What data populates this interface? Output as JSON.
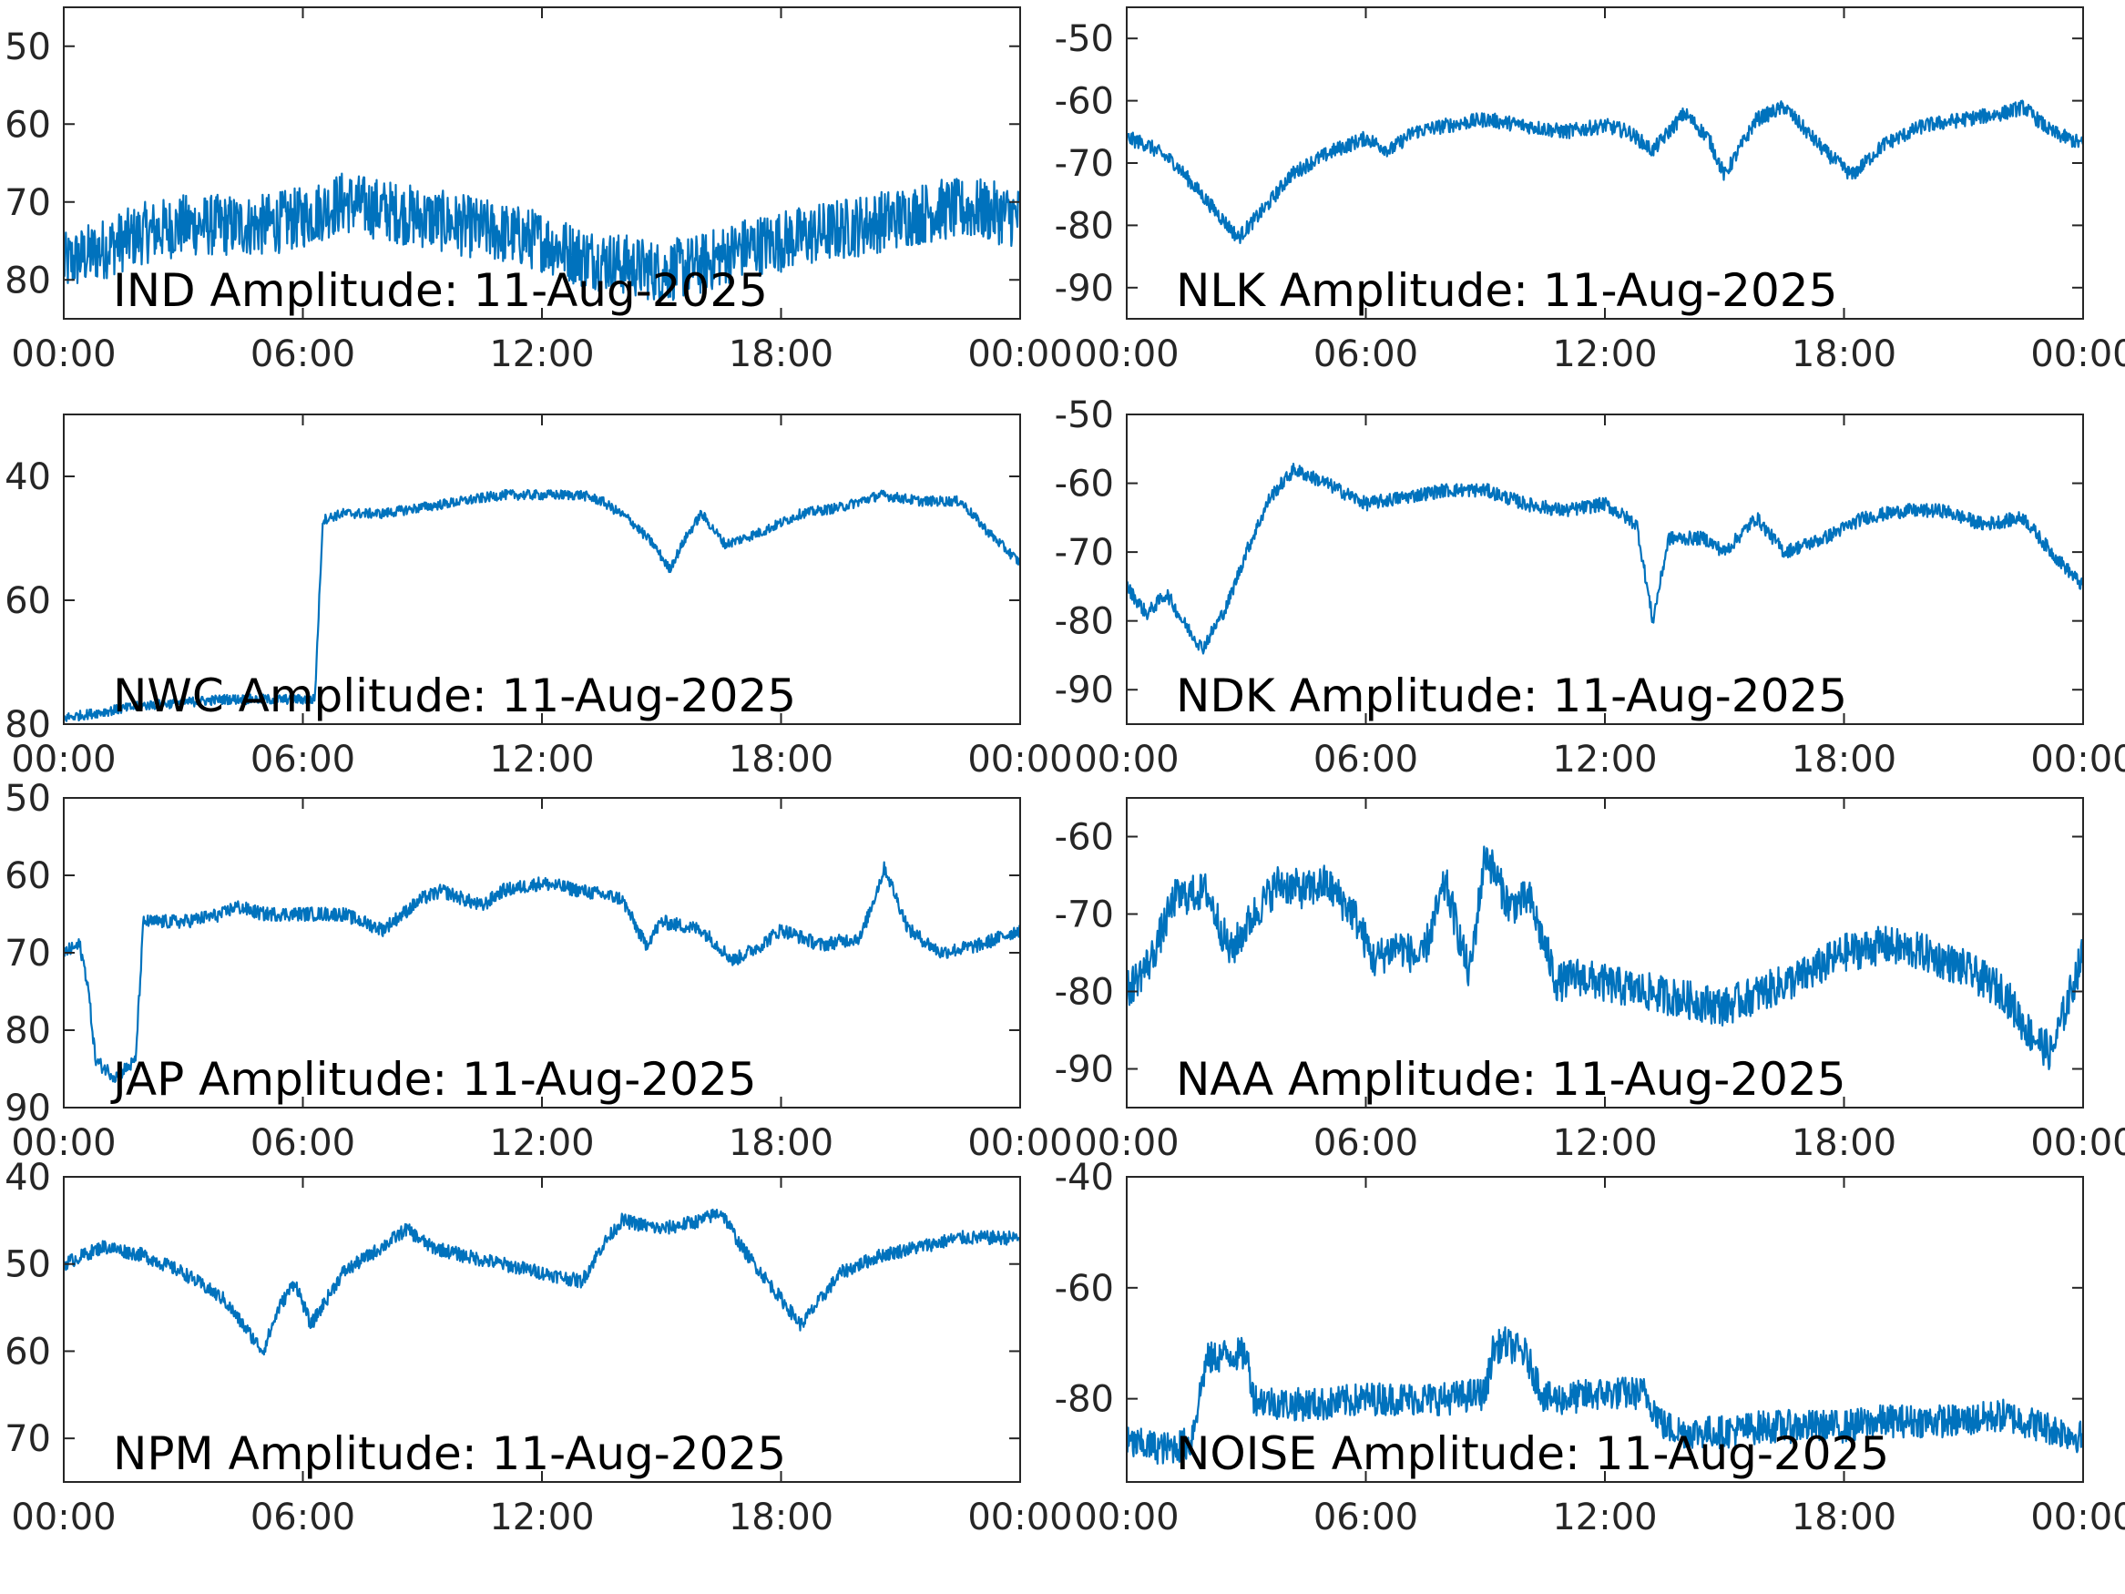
{
  "colors": {
    "series": "#0072BD",
    "axes": "#262626",
    "background": "#ffffff"
  },
  "chart_data": [
    {
      "type": "line",
      "label": "IND Amplitude: 11-Aug-2025",
      "x_ticks": [
        "00:00",
        "06:00",
        "12:00",
        "18:00",
        "00:00"
      ],
      "y_ticks": [
        "50",
        "60",
        "70",
        "80"
      ],
      "ylim": [
        -85,
        -45
      ],
      "x_hours": [
        0,
        1,
        2,
        3,
        4,
        5,
        6,
        7,
        8,
        9,
        10,
        11,
        12,
        13,
        14,
        15,
        16,
        17,
        18,
        19,
        20,
        21,
        22,
        23,
        24
      ],
      "y": [
        -78,
        -76,
        -74,
        -73,
        -73,
        -73,
        -72,
        -70,
        -71,
        -72,
        -73,
        -74,
        -75,
        -77,
        -78,
        -79,
        -78,
        -76,
        -75,
        -74,
        -73,
        -72,
        -71,
        -71,
        -72
      ],
      "noise": 4,
      "grid": false
    },
    {
      "type": "line",
      "label": "NLK Amplitude: 11-Aug-2025",
      "x_ticks": [
        "00:00",
        "06:00",
        "12:00",
        "18:00",
        "00:00"
      ],
      "y_ticks": [
        "-50",
        "-60",
        "-70",
        "-80",
        "-90"
      ],
      "ylim": [
        -95,
        -45
      ],
      "x_hours": [
        0,
        0.5,
        1.2,
        2.0,
        2.8,
        3.5,
        4.1,
        4.6,
        5.2,
        6.0,
        6.6,
        7.2,
        8.0,
        9.0,
        10,
        11,
        12,
        12.6,
        13.2,
        14.0,
        14.6,
        15.0,
        15.8,
        16.5,
        17.5,
        18.2,
        19.0,
        20,
        21,
        22,
        22.5,
        23.2,
        24
      ],
      "y": [
        -66,
        -67,
        -70,
        -76,
        -82,
        -77,
        -72,
        -70,
        -68,
        -66,
        -68,
        -65,
        -64,
        -63,
        -64,
        -65,
        -64,
        -65,
        -68,
        -62,
        -66,
        -72,
        -63,
        -61,
        -68,
        -72,
        -67,
        -64,
        -63,
        -62,
        -61,
        -65,
        -67
      ],
      "noise": 1.2,
      "grid": false
    },
    {
      "type": "line",
      "label": "NWC Amplitude: 11-Aug-2025",
      "x_ticks": [
        "00:00",
        "06:00",
        "12:00",
        "18:00",
        "00:00"
      ],
      "y_ticks": [
        "40",
        "60",
        "80"
      ],
      "ylim": [
        -80,
        -30
      ],
      "x_hours": [
        0,
        2,
        4,
        6.3,
        6.5,
        7,
        8,
        9,
        10,
        11,
        12,
        13,
        13.5,
        14.2,
        14.8,
        15.2,
        15.6,
        16.0,
        16.6,
        17.5,
        18.5,
        19.5,
        20.5,
        21.5,
        22.5,
        23.2,
        24
      ],
      "y": [
        -79,
        -77,
        -76,
        -76,
        -47,
        -46,
        -46,
        -45,
        -44,
        -43,
        -43,
        -43,
        -44,
        -47,
        -51,
        -55,
        -50,
        -46,
        -51,
        -49,
        -46,
        -45,
        -43,
        -44,
        -44,
        -49,
        -54
      ],
      "noise": 0.8,
      "grid": false
    },
    {
      "type": "line",
      "label": "NDK Amplitude: 11-Aug-2025",
      "x_ticks": [
        "00:00",
        "06:00",
        "12:00",
        "18:00",
        "00:00"
      ],
      "y_ticks": [
        "-50",
        "-60",
        "-70",
        "-80",
        "-90"
      ],
      "ylim": [
        -95,
        -50
      ],
      "x_hours": [
        0,
        0.5,
        1.0,
        1.4,
        1.9,
        2.5,
        3.0,
        3.6,
        4.2,
        5.0,
        6,
        7,
        8,
        9,
        10,
        11,
        12,
        12.8,
        13.2,
        13.6,
        14.5,
        15.0,
        15.8,
        16.5,
        17.5,
        18.5,
        19.5,
        20.5,
        21.5,
        22.5,
        23.2,
        24
      ],
      "y": [
        -75,
        -79,
        -76,
        -80,
        -84,
        -78,
        -70,
        -62,
        -58,
        -60,
        -63,
        -62,
        -61,
        -61,
        -63,
        -64,
        -63,
        -66,
        -80,
        -68,
        -68,
        -70,
        -65,
        -70,
        -68,
        -65,
        -64,
        -64,
        -66,
        -65,
        -70,
        -75
      ],
      "noise": 1.0,
      "grid": false
    },
    {
      "type": "line",
      "label": "JAP Amplitude: 11-Aug-2025",
      "x_ticks": [
        "00:00",
        "06:00",
        "12:00",
        "18:00",
        "00:00"
      ],
      "y_ticks": [
        "50",
        "60",
        "70",
        "80",
        "90"
      ],
      "ylim": [
        -90,
        -50
      ],
      "x_hours": [
        0,
        0.4,
        0.6,
        0.8,
        1.3,
        1.8,
        2.0,
        3,
        4,
        4.3,
        5,
        6,
        7,
        8,
        9,
        9.5,
        10.5,
        11,
        12,
        13,
        14,
        14.6,
        15,
        16,
        16.8,
        17.5,
        18,
        19,
        20,
        20.6,
        21.2,
        22,
        23,
        24
      ],
      "y": [
        -70,
        -69,
        -74,
        -84,
        -86,
        -84,
        -66,
        -66,
        -65,
        -64,
        -65,
        -65,
        -65,
        -67,
        -63,
        -62,
        -64,
        -62,
        -61,
        -62,
        -63,
        -69,
        -66,
        -67,
        -71,
        -69,
        -67,
        -69,
        -68,
        -59,
        -67,
        -70,
        -69,
        -67
      ],
      "noise": 0.9,
      "grid": false
    },
    {
      "type": "line",
      "label": "NAA Amplitude: 11-Aug-2025",
      "x_ticks": [
        "00:00",
        "06:00",
        "12:00",
        "18:00",
        "00:00"
      ],
      "y_ticks": [
        "-60",
        "-70",
        "-80",
        "-90"
      ],
      "ylim": [
        -95,
        -55
      ],
      "x_hours": [
        0,
        0.6,
        1.2,
        2.0,
        2.6,
        3.2,
        3.8,
        4.5,
        5.0,
        5.7,
        6.2,
        6.8,
        7.4,
        8.0,
        8.6,
        9.0,
        9.6,
        10.1,
        10.8,
        11.3,
        12,
        13,
        14,
        15,
        16,
        17,
        18,
        19,
        20,
        21,
        22,
        22.6,
        23.2,
        24
      ],
      "y": [
        -80,
        -76,
        -68,
        -67,
        -75,
        -70,
        -66,
        -67,
        -66,
        -70,
        -76,
        -74,
        -76,
        -66,
        -78,
        -62,
        -69,
        -68,
        -79,
        -78,
        -79,
        -80,
        -81,
        -82,
        -80,
        -78,
        -75,
        -74,
        -75,
        -77,
        -80,
        -85,
        -88,
        -75
      ],
      "noise": 2.5,
      "grid": false
    },
    {
      "type": "line",
      "label": "NPM Amplitude: 11-Aug-2025",
      "x_ticks": [
        "00:00",
        "06:00",
        "12:00",
        "18:00",
        "00:00"
      ],
      "y_ticks": [
        "40",
        "50",
        "60",
        "70"
      ],
      "ylim": [
        -75,
        -40
      ],
      "x_hours": [
        0,
        0.5,
        1,
        2,
        3,
        4,
        4.5,
        5.0,
        5.4,
        5.8,
        6.2,
        7,
        8,
        8.6,
        9.2,
        10,
        11,
        12,
        13,
        13.5,
        14,
        15,
        16,
        16.5,
        17,
        18,
        18.5,
        19.5,
        20.5,
        21.5,
        22.5,
        24
      ],
      "y": [
        -50,
        -49,
        -48,
        -49,
        -51,
        -54,
        -57,
        -60,
        -55,
        -52,
        -57,
        -51,
        -48,
        -46,
        -48,
        -49,
        -50,
        -51,
        -52,
        -48,
        -45,
        -46,
        -45,
        -44,
        -48,
        -54,
        -57,
        -51,
        -49,
        -48,
        -47,
        -47
      ],
      "noise": 0.8,
      "grid": false
    },
    {
      "type": "line",
      "label": "NOISE Amplitude: 11-Aug-2025",
      "x_ticks": [
        "00:00",
        "06:00",
        "12:00",
        "18:00",
        "00:00"
      ],
      "y_ticks": [
        "-40",
        "-60",
        "-80"
      ],
      "ylim": [
        -95,
        -40
      ],
      "x_hours": [
        0,
        1.0,
        1.6,
        2.0,
        2.5,
        3.0,
        3.2,
        4,
        5,
        6,
        7,
        8,
        9,
        9.2,
        9.5,
        10.0,
        10.5,
        11,
        12,
        13,
        13.5,
        14,
        15,
        16,
        17,
        18,
        19,
        20,
        21,
        22,
        23,
        24
      ],
      "y": [
        -88,
        -89,
        -88,
        -73,
        -72,
        -72,
        -80,
        -81,
        -81,
        -80,
        -80,
        -80,
        -79,
        -71,
        -70,
        -72,
        -80,
        -80,
        -79,
        -79,
        -85,
        -86,
        -86,
        -85,
        -85,
        -85,
        -84,
        -84,
        -84,
        -83,
        -85,
        -87
      ],
      "noise": 3.0,
      "grid": false
    }
  ]
}
